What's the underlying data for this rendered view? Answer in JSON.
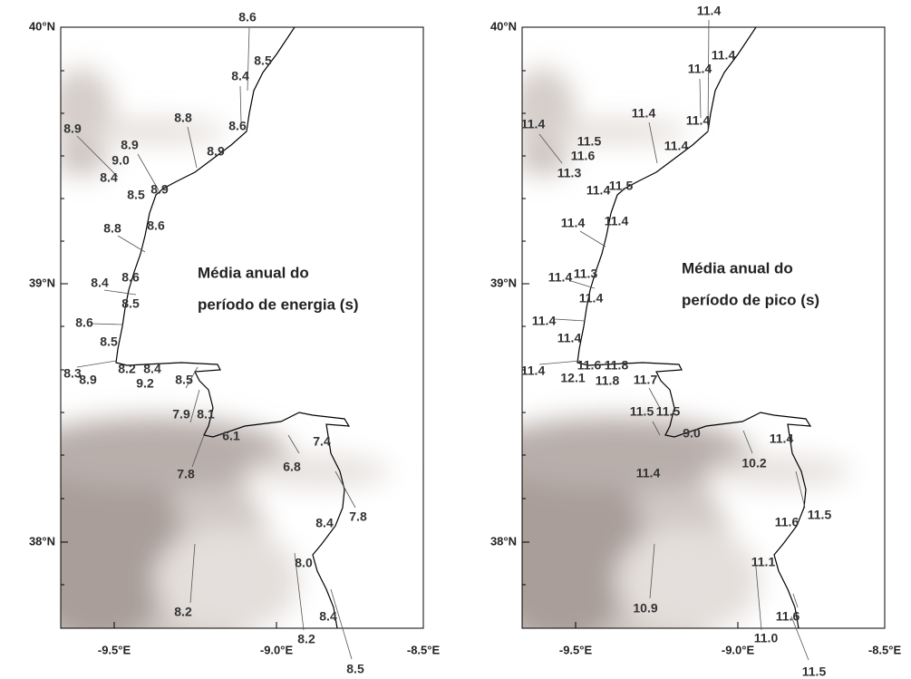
{
  "panels": [
    {
      "title": [
        "Média anual do",
        "período de energia (s)"
      ],
      "lat_ticks": [
        "40°N",
        "39°N",
        "38°N"
      ],
      "lon_ticks": [
        "-9.5°E",
        "-9.0°E",
        "-8.5°E"
      ],
      "labels": [
        "8.6",
        "8.5",
        "8.4",
        "8.8",
        "8.6",
        "8.9",
        "8.9",
        "9.0",
        "8.9",
        "8.4",
        "8.5",
        "8.9",
        "8.8",
        "8.6",
        "8.6",
        "8.4",
        "8.5",
        "8.6",
        "8.5",
        "8.3",
        "8.2",
        "8.4",
        "8.9",
        "9.2",
        "8.5",
        "7.9",
        "8.1",
        "6.1",
        "7.4",
        "6.8",
        "7.8",
        "7.8",
        "8.4",
        "8.0",
        "8.2",
        "8.2",
        "8.4",
        "8.5"
      ]
    },
    {
      "title": [
        "Média anual do",
        "período de pico (s)"
      ],
      "lat_ticks": [
        "40°N",
        "39°N",
        "38°N"
      ],
      "lon_ticks": [
        "-9.5°E",
        "-9.0°E",
        "-8.5°E"
      ],
      "labels": [
        "11.4",
        "11.4",
        "11.4",
        "11.4",
        "11.4",
        "11.4",
        "11.5",
        "11.6",
        "11.4",
        "11.3",
        "11.4",
        "11.5",
        "11.4",
        "11.4",
        "11.4",
        "11.3",
        "11.4",
        "11.4",
        "11.4",
        "11.4",
        "11.6",
        "11.8",
        "12.1",
        "11.8",
        "11.7",
        "11.5",
        "11.5",
        "9.0",
        "11.4",
        "10.2",
        "11.4",
        "11.5",
        "11.6",
        "11.1",
        "10.9",
        "11.6",
        "11.0",
        "11.5"
      ]
    }
  ]
}
